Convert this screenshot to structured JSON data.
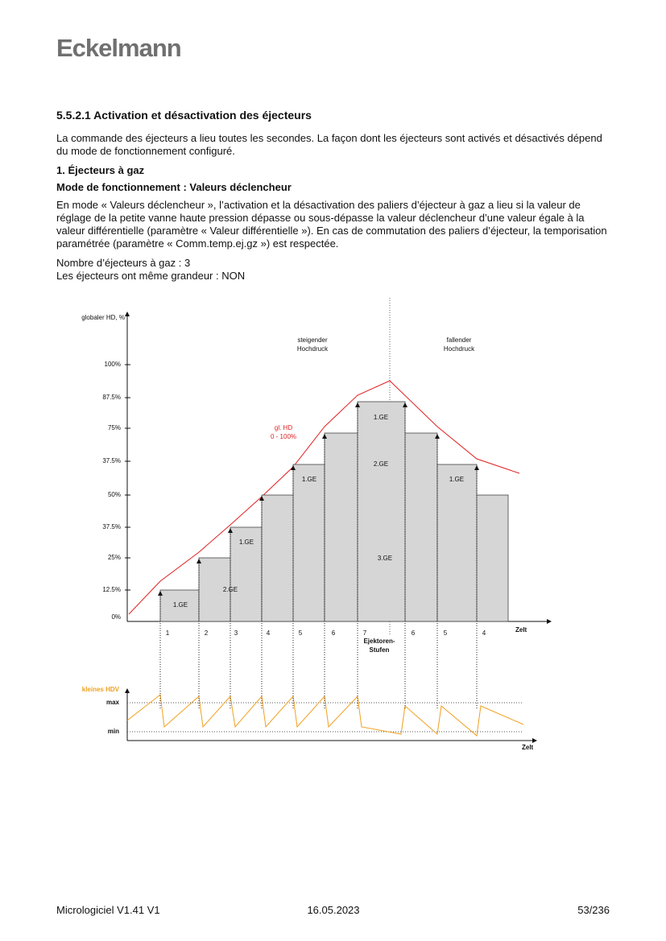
{
  "header": {
    "logo": "Eckelmann"
  },
  "section": {
    "heading": "5.5.2.1  Activation et désactivation des éjecteurs",
    "intro": "La commande des éjecteurs a lieu toutes les secondes. La façon dont les éjecteurs sont activés et désactivés dépend du mode de fonctionnement configuré.",
    "subheading": "1. Éjecteurs à gaz",
    "mode_heading": "Mode de fonctionnement : Valeurs déclencheur",
    "mode_text": "En mode « Valeurs déclencheur », l’activation et la désactivation des paliers d’éjecteur à gaz a lieu si la valeur de réglage de la petite vanne haute pression dépasse ou sous-dépasse la valeur déclencheur d’une valeur égale à la valeur différentielle (paramètre « Valeur différentielle »). En cas de commutation des paliers d’éjecteur, la temporisation paramétrée (paramètre « Comm.temp.ej.gz ») est respectée.",
    "count_line": "Nombre d’éjecteurs à gaz : 3",
    "size_line": "Les éjecteurs ont même grandeur : NON"
  },
  "diagram": {
    "y_axis_title": "globaler HD, %",
    "y_labels": [
      "100%",
      "87.5%",
      "75%",
      "37.5%",
      "50%",
      "37.5%",
      "25%",
      "12.5%",
      "0%"
    ],
    "bar_labels": [
      "1.GE",
      "2.GE",
      "1.GE",
      "3.GE",
      "1.GE",
      "2.GE",
      "1.GE",
      "1.GE"
    ],
    "step_labels": [
      "1",
      "2",
      "3",
      "4",
      "5",
      "6",
      "7",
      "6",
      "5",
      "4"
    ],
    "x_axis_title": "Zelt",
    "steps_title": [
      "Ejektoren-",
      "Stufen"
    ],
    "rising": [
      "steigender",
      "Hochdruck"
    ],
    "falling": [
      "fallender",
      "Hochdruck"
    ],
    "hd_label": [
      "gl. HD",
      "0 - 100%"
    ],
    "lower_title": "kleines HDV",
    "lower_max": "max",
    "lower_min": "min",
    "lower_x_title": "Zelt"
  },
  "footer": {
    "left": "Micrologiciel V1.41 V1",
    "center": "16.05.2023",
    "right": "53/236"
  }
}
